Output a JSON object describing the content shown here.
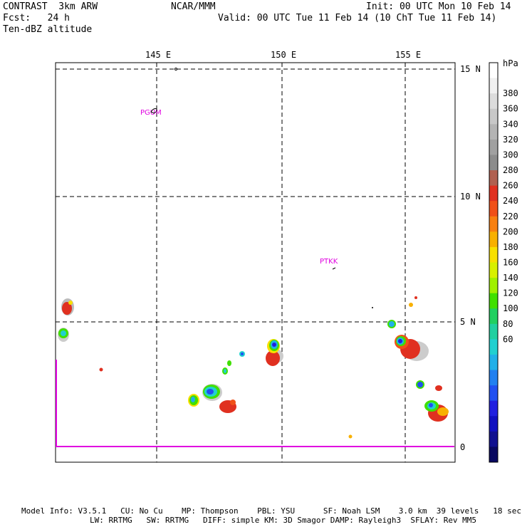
{
  "header": {
    "line1_left": "CONTRAST  3km ARW",
    "line1_center": "NCAR/MMM",
    "line1_right": "Init: 00 UTC Mon 10 Feb 14",
    "line2_left": "Fcst:   24 h",
    "line2_right": "Valid: 00 UTC Tue 11 Feb 14 (10 ChT Tue 11 Feb 14)",
    "line3_left": "Ten-dBZ altitude"
  },
  "map": {
    "lon_labels": [
      "145 E",
      "150 E",
      "155 E"
    ],
    "lat_labels": [
      "15 N",
      "10 N",
      "5 N",
      "0"
    ],
    "stations": [
      {
        "label": "PGUM"
      },
      {
        "label": "PTKK"
      }
    ]
  },
  "colorbar": {
    "unit": "hPa",
    "labels": [
      "380",
      "360",
      "340",
      "320",
      "300",
      "280",
      "260",
      "240",
      "220",
      "200",
      "180",
      "160",
      "140",
      "120",
      "100",
      "80",
      "60"
    ],
    "colors": [
      "#ffffff",
      "#f0f0f0",
      "#dcdcdc",
      "#c8c8c8",
      "#b4b4b4",
      "#a0a0a0",
      "#8c8c8c",
      "#b06050",
      "#e03020",
      "#f05018",
      "#f88010",
      "#f8b000",
      "#f8e000",
      "#d8f000",
      "#a0f000",
      "#40e000",
      "#20d060",
      "#20d0a0",
      "#20d0d0",
      "#20b0e8",
      "#2080f0",
      "#2050f0",
      "#2020e0",
      "#1010c0",
      "#101090",
      "#080860"
    ]
  },
  "footer": {
    "line1": "Model Info: V3.5.1   CU: No Cu    MP: Thompson    PBL: YSU      SF: Noah LSM    3.0 km  39 levels   18 sec",
    "line2": "LW: RRTMG   SW: RRTMG   DIFF: simple KM: 3D Smagor DAMP: Rayleigh3  SFLAY: Rev MM5"
  }
}
